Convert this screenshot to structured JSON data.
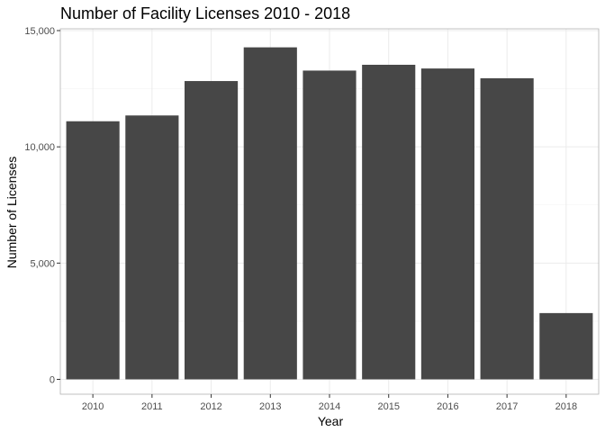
{
  "chart_data": {
    "type": "bar",
    "title": "Number of Facility Licenses 2010 - 2018",
    "xlabel": "Year",
    "ylabel": "Number of Licenses",
    "categories": [
      "2010",
      "2011",
      "2012",
      "2013",
      "2014",
      "2015",
      "2016",
      "2017",
      "2018"
    ],
    "values": [
      11100,
      11350,
      12830,
      14280,
      13280,
      13530,
      13370,
      12950,
      2850
    ],
    "ylim": [
      0,
      15000
    ],
    "yticks": [
      0,
      5000,
      10000,
      15000
    ],
    "ytick_labels": [
      "0",
      "5,000",
      "10,000",
      "15,000"
    ],
    "grid": true,
    "legend": "none",
    "bar_color": "#474747"
  }
}
